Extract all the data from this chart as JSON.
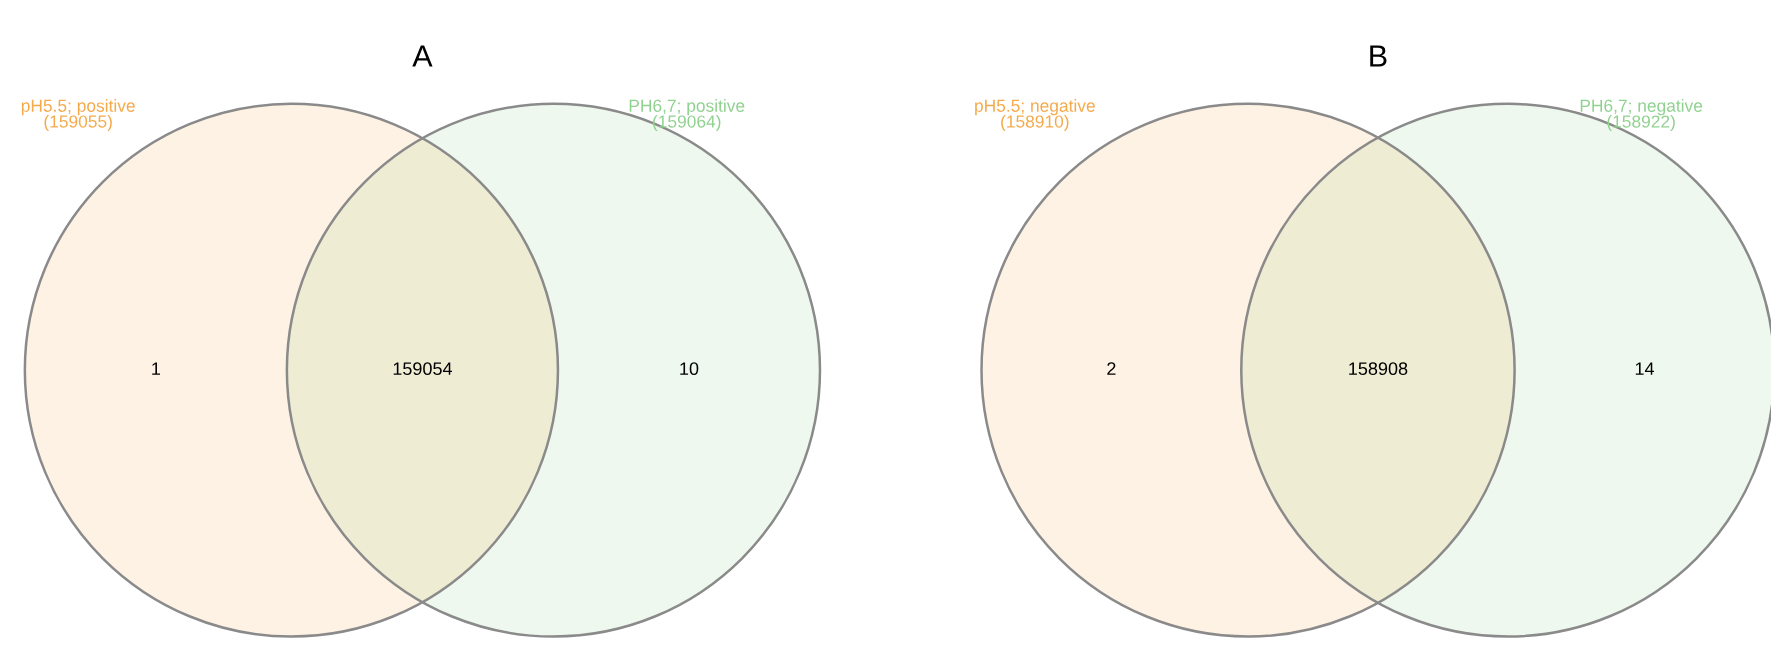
{
  "chart_data": [
    {
      "type": "other",
      "title": "A",
      "categories": [
        null,
        null,
        null
      ],
      "values": [
        1,
        159054,
        10
      ],
      "data_labels": true,
      "colors": [
        "#f5a94a",
        "#c9bf70",
        "#8fd18f"
      ],
      "annotations": [
        "pH5.5; positive",
        "(159055)",
        "PH6,7; positive",
        "(159064)"
      ]
    },
    {
      "type": "other",
      "title": "B",
      "categories": [
        null,
        null,
        null
      ],
      "values": [
        2,
        158908,
        14
      ],
      "data_labels": true,
      "colors": [
        "#f5a94a",
        "#c9bf70",
        "#8fd18f"
      ],
      "annotations": [
        "pH5.5; negative",
        "(158910)",
        "PH6,7; negative",
        "(158922)"
      ]
    }
  ]
}
